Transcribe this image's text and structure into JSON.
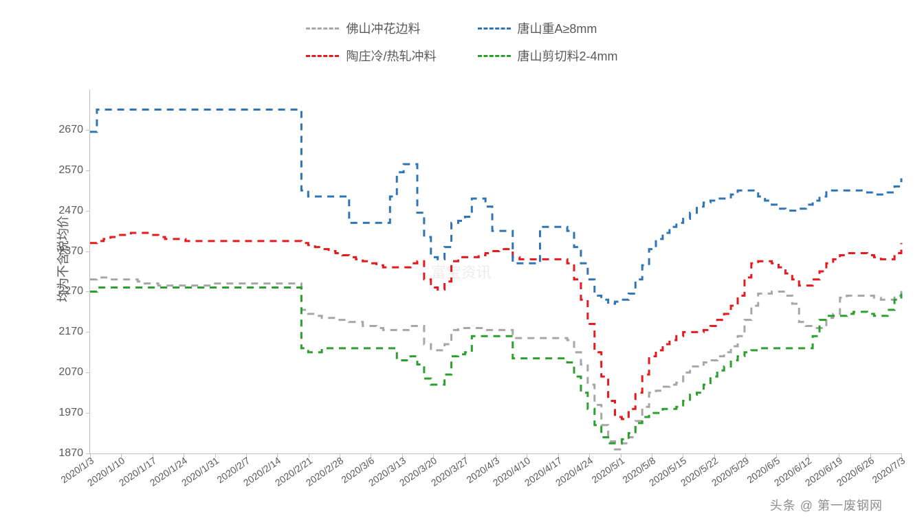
{
  "chart": {
    "type": "line",
    "y_axis_label": "均为不含税均价",
    "y_min": 1870,
    "y_max": 2770,
    "y_ticks": [
      1870,
      1970,
      2070,
      2170,
      2270,
      2370,
      2470,
      2570,
      2670
    ],
    "x_labels": [
      "2020/1/3",
      "2020/1/10",
      "2020/1/17",
      "2020/1/24",
      "2020/1/31",
      "2020/2/7",
      "2020/2/14",
      "2020/2/21",
      "2020/2/28",
      "2020/3/6",
      "2020/3/13",
      "2020/3/20",
      "2020/3/27",
      "2020/4/3",
      "2020/4/10",
      "2020/4/17",
      "2020/4/24",
      "2020/5/1",
      "2020/5/8",
      "2020/5/15",
      "2020/5/22",
      "2020/5/29",
      "2020/6/5",
      "2020/6/12",
      "2020/6/19",
      "2020/6/26",
      "2020/7/3"
    ],
    "axis_color": "#bfbfbf",
    "label_color": "#595959",
    "label_fontsize": 16,
    "axis_title_fontsize": 18,
    "background_color": "#ffffff",
    "watermark_center": "富宝资讯",
    "watermark_corner": "头条 @ 第一废钢网",
    "series": [
      {
        "name": "佛山冲花边料",
        "color": "#a6a6a6",
        "dash": "10,8",
        "values": [
          2300,
          2305,
          2305,
          2300,
          2300,
          2300,
          2300,
          2295,
          2290,
          2290,
          2285,
          2285,
          2285,
          2285,
          2285,
          2285,
          2285,
          2285,
          2290,
          2290,
          2290,
          2290,
          2290,
          2290,
          2290,
          2290,
          2290,
          2290,
          2290,
          2290,
          2290,
          2225,
          2215,
          2210,
          2205,
          2205,
          2200,
          2200,
          2195,
          2195,
          2185,
          2185,
          2180,
          2175,
          2175,
          2175,
          2175,
          2185,
          2185,
          2140,
          2125,
          2125,
          2140,
          2175,
          2180,
          2180,
          2180,
          2180,
          2175,
          2175,
          2175,
          2175,
          2155,
          2155,
          2155,
          2155,
          2155,
          2155,
          2155,
          2155,
          2150,
          2120,
          2090,
          2040,
          1990,
          1940,
          1900,
          1880,
          1895,
          1910,
          1950,
          1985,
          2020,
          2025,
          2035,
          2040,
          2045,
          2070,
          2085,
          2085,
          2095,
          2100,
          2110,
          2120,
          2135,
          2160,
          2200,
          2235,
          2265,
          2265,
          2270,
          2270,
          2260,
          2240,
          2195,
          2185,
          2180,
          2180,
          2205,
          2215,
          2255,
          2260,
          2260,
          2260,
          2260,
          2255,
          2250,
          2250,
          2260,
          2275
        ]
      },
      {
        "name": "陶庄冷/热轧冲料",
        "color": "#e41a1c",
        "dash": "10,8",
        "values": [
          2390,
          2395,
          2400,
          2405,
          2410,
          2410,
          2415,
          2415,
          2415,
          2410,
          2405,
          2400,
          2400,
          2400,
          2395,
          2395,
          2395,
          2395,
          2395,
          2395,
          2395,
          2395,
          2395,
          2395,
          2395,
          2395,
          2395,
          2395,
          2395,
          2395,
          2395,
          2390,
          2385,
          2380,
          2375,
          2370,
          2365,
          2360,
          2355,
          2350,
          2345,
          2340,
          2335,
          2330,
          2330,
          2330,
          2330,
          2340,
          2345,
          2300,
          2280,
          2275,
          2295,
          2345,
          2355,
          2355,
          2355,
          2360,
          2365,
          2370,
          2375,
          2375,
          2355,
          2350,
          2350,
          2350,
          2350,
          2350,
          2350,
          2350,
          2340,
          2300,
          2250,
          2190,
          2120,
          2060,
          2000,
          1960,
          1955,
          1980,
          2020,
          2065,
          2110,
          2125,
          2140,
          2150,
          2160,
          2170,
          2170,
          2170,
          2175,
          2185,
          2200,
          2215,
          2235,
          2260,
          2305,
          2340,
          2345,
          2345,
          2340,
          2330,
          2315,
          2300,
          2285,
          2285,
          2300,
          2320,
          2340,
          2350,
          2360,
          2365,
          2365,
          2365,
          2360,
          2355,
          2350,
          2350,
          2365,
          2390
        ]
      },
      {
        "name": "唐山重A≥8mm",
        "color": "#2e75b6",
        "dash": "10,8",
        "values": [
          2665,
          2720,
          2720,
          2720,
          2720,
          2720,
          2720,
          2720,
          2720,
          2720,
          2720,
          2720,
          2720,
          2720,
          2720,
          2720,
          2720,
          2720,
          2720,
          2720,
          2720,
          2720,
          2720,
          2720,
          2720,
          2720,
          2720,
          2720,
          2720,
          2720,
          2720,
          2520,
          2505,
          2505,
          2505,
          2505,
          2505,
          2505,
          2440,
          2440,
          2440,
          2440,
          2440,
          2440,
          2505,
          2565,
          2585,
          2585,
          2465,
          2405,
          2355,
          2350,
          2380,
          2440,
          2445,
          2455,
          2500,
          2500,
          2480,
          2420,
          2420,
          2420,
          2340,
          2340,
          2340,
          2340,
          2430,
          2430,
          2430,
          2430,
          2420,
          2380,
          2340,
          2300,
          2260,
          2250,
          2240,
          2245,
          2250,
          2265,
          2300,
          2335,
          2375,
          2400,
          2415,
          2430,
          2440,
          2450,
          2465,
          2480,
          2490,
          2495,
          2500,
          2500,
          2510,
          2520,
          2520,
          2520,
          2505,
          2495,
          2485,
          2475,
          2470,
          2470,
          2475,
          2485,
          2495,
          2505,
          2520,
          2520,
          2520,
          2520,
          2520,
          2520,
          2515,
          2510,
          2510,
          2515,
          2530,
          2550
        ]
      },
      {
        "name": "唐山剪切料2-4mm",
        "color": "#2ca02c",
        "dash": "10,8",
        "values": [
          2270,
          2280,
          2280,
          2280,
          2280,
          2280,
          2280,
          2280,
          2280,
          2280,
          2280,
          2280,
          2280,
          2280,
          2280,
          2280,
          2280,
          2280,
          2280,
          2280,
          2280,
          2280,
          2280,
          2280,
          2280,
          2280,
          2280,
          2280,
          2280,
          2280,
          2280,
          2130,
          2120,
          2120,
          2130,
          2130,
          2130,
          2130,
          2130,
          2130,
          2130,
          2130,
          2130,
          2130,
          2130,
          2100,
          2100,
          2110,
          2090,
          2055,
          2040,
          2040,
          2065,
          2110,
          2115,
          2120,
          2160,
          2160,
          2160,
          2160,
          2160,
          2160,
          2105,
          2105,
          2105,
          2105,
          2105,
          2105,
          2105,
          2105,
          2095,
          2060,
          2020,
          1980,
          1940,
          1910,
          1895,
          1895,
          1905,
          1920,
          1945,
          1960,
          1970,
          1970,
          1980,
          1980,
          1985,
          2000,
          2015,
          2020,
          2040,
          2060,
          2075,
          2085,
          2100,
          2110,
          2120,
          2125,
          2130,
          2130,
          2130,
          2130,
          2130,
          2130,
          2130,
          2130,
          2160,
          2200,
          2210,
          2210,
          2210,
          2215,
          2220,
          2220,
          2215,
          2210,
          2210,
          2225,
          2250,
          2265
        ]
      }
    ]
  }
}
